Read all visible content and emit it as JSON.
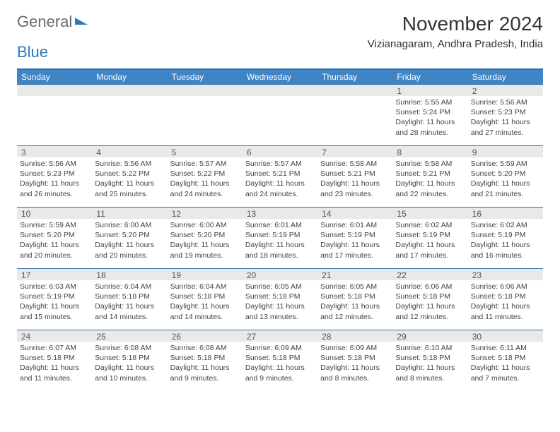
{
  "logo": {
    "word1": "General",
    "word2": "Blue"
  },
  "header": {
    "month_title": "November 2024",
    "location": "Vizianagaram, Andhra Pradesh, India"
  },
  "colors": {
    "header_bar": "#3f84c4",
    "header_text": "#ffffff",
    "rule": "#2f6fa8",
    "daynum_bg": "#e9e9e9",
    "text": "#333333",
    "logo_gray": "#6a6a6a",
    "logo_blue": "#2f77bb"
  },
  "weekdays": [
    "Sunday",
    "Monday",
    "Tuesday",
    "Wednesday",
    "Thursday",
    "Friday",
    "Saturday"
  ],
  "weeks": [
    [
      {
        "n": "",
        "sr": "",
        "ss": "",
        "dl": ""
      },
      {
        "n": "",
        "sr": "",
        "ss": "",
        "dl": ""
      },
      {
        "n": "",
        "sr": "",
        "ss": "",
        "dl": ""
      },
      {
        "n": "",
        "sr": "",
        "ss": "",
        "dl": ""
      },
      {
        "n": "",
        "sr": "",
        "ss": "",
        "dl": ""
      },
      {
        "n": "1",
        "sr": "Sunrise: 5:55 AM",
        "ss": "Sunset: 5:24 PM",
        "dl": "Daylight: 11 hours and 28 minutes."
      },
      {
        "n": "2",
        "sr": "Sunrise: 5:56 AM",
        "ss": "Sunset: 5:23 PM",
        "dl": "Daylight: 11 hours and 27 minutes."
      }
    ],
    [
      {
        "n": "3",
        "sr": "Sunrise: 5:56 AM",
        "ss": "Sunset: 5:23 PM",
        "dl": "Daylight: 11 hours and 26 minutes."
      },
      {
        "n": "4",
        "sr": "Sunrise: 5:56 AM",
        "ss": "Sunset: 5:22 PM",
        "dl": "Daylight: 11 hours and 25 minutes."
      },
      {
        "n": "5",
        "sr": "Sunrise: 5:57 AM",
        "ss": "Sunset: 5:22 PM",
        "dl": "Daylight: 11 hours and 24 minutes."
      },
      {
        "n": "6",
        "sr": "Sunrise: 5:57 AM",
        "ss": "Sunset: 5:21 PM",
        "dl": "Daylight: 11 hours and 24 minutes."
      },
      {
        "n": "7",
        "sr": "Sunrise: 5:58 AM",
        "ss": "Sunset: 5:21 PM",
        "dl": "Daylight: 11 hours and 23 minutes."
      },
      {
        "n": "8",
        "sr": "Sunrise: 5:58 AM",
        "ss": "Sunset: 5:21 PM",
        "dl": "Daylight: 11 hours and 22 minutes."
      },
      {
        "n": "9",
        "sr": "Sunrise: 5:59 AM",
        "ss": "Sunset: 5:20 PM",
        "dl": "Daylight: 11 hours and 21 minutes."
      }
    ],
    [
      {
        "n": "10",
        "sr": "Sunrise: 5:59 AM",
        "ss": "Sunset: 5:20 PM",
        "dl": "Daylight: 11 hours and 20 minutes."
      },
      {
        "n": "11",
        "sr": "Sunrise: 6:00 AM",
        "ss": "Sunset: 5:20 PM",
        "dl": "Daylight: 11 hours and 20 minutes."
      },
      {
        "n": "12",
        "sr": "Sunrise: 6:00 AM",
        "ss": "Sunset: 5:20 PM",
        "dl": "Daylight: 11 hours and 19 minutes."
      },
      {
        "n": "13",
        "sr": "Sunrise: 6:01 AM",
        "ss": "Sunset: 5:19 PM",
        "dl": "Daylight: 11 hours and 18 minutes."
      },
      {
        "n": "14",
        "sr": "Sunrise: 6:01 AM",
        "ss": "Sunset: 5:19 PM",
        "dl": "Daylight: 11 hours and 17 minutes."
      },
      {
        "n": "15",
        "sr": "Sunrise: 6:02 AM",
        "ss": "Sunset: 5:19 PM",
        "dl": "Daylight: 11 hours and 17 minutes."
      },
      {
        "n": "16",
        "sr": "Sunrise: 6:02 AM",
        "ss": "Sunset: 5:19 PM",
        "dl": "Daylight: 11 hours and 16 minutes."
      }
    ],
    [
      {
        "n": "17",
        "sr": "Sunrise: 6:03 AM",
        "ss": "Sunset: 5:19 PM",
        "dl": "Daylight: 11 hours and 15 minutes."
      },
      {
        "n": "18",
        "sr": "Sunrise: 6:04 AM",
        "ss": "Sunset: 5:18 PM",
        "dl": "Daylight: 11 hours and 14 minutes."
      },
      {
        "n": "19",
        "sr": "Sunrise: 6:04 AM",
        "ss": "Sunset: 5:18 PM",
        "dl": "Daylight: 11 hours and 14 minutes."
      },
      {
        "n": "20",
        "sr": "Sunrise: 6:05 AM",
        "ss": "Sunset: 5:18 PM",
        "dl": "Daylight: 11 hours and 13 minutes."
      },
      {
        "n": "21",
        "sr": "Sunrise: 6:05 AM",
        "ss": "Sunset: 5:18 PM",
        "dl": "Daylight: 11 hours and 12 minutes."
      },
      {
        "n": "22",
        "sr": "Sunrise: 6:06 AM",
        "ss": "Sunset: 5:18 PM",
        "dl": "Daylight: 11 hours and 12 minutes."
      },
      {
        "n": "23",
        "sr": "Sunrise: 6:06 AM",
        "ss": "Sunset: 5:18 PM",
        "dl": "Daylight: 11 hours and 11 minutes."
      }
    ],
    [
      {
        "n": "24",
        "sr": "Sunrise: 6:07 AM",
        "ss": "Sunset: 5:18 PM",
        "dl": "Daylight: 11 hours and 11 minutes."
      },
      {
        "n": "25",
        "sr": "Sunrise: 6:08 AM",
        "ss": "Sunset: 5:18 PM",
        "dl": "Daylight: 11 hours and 10 minutes."
      },
      {
        "n": "26",
        "sr": "Sunrise: 6:08 AM",
        "ss": "Sunset: 5:18 PM",
        "dl": "Daylight: 11 hours and 9 minutes."
      },
      {
        "n": "27",
        "sr": "Sunrise: 6:09 AM",
        "ss": "Sunset: 5:18 PM",
        "dl": "Daylight: 11 hours and 9 minutes."
      },
      {
        "n": "28",
        "sr": "Sunrise: 6:09 AM",
        "ss": "Sunset: 5:18 PM",
        "dl": "Daylight: 11 hours and 8 minutes."
      },
      {
        "n": "29",
        "sr": "Sunrise: 6:10 AM",
        "ss": "Sunset: 5:18 PM",
        "dl": "Daylight: 11 hours and 8 minutes."
      },
      {
        "n": "30",
        "sr": "Sunrise: 6:11 AM",
        "ss": "Sunset: 5:18 PM",
        "dl": "Daylight: 11 hours and 7 minutes."
      }
    ]
  ]
}
